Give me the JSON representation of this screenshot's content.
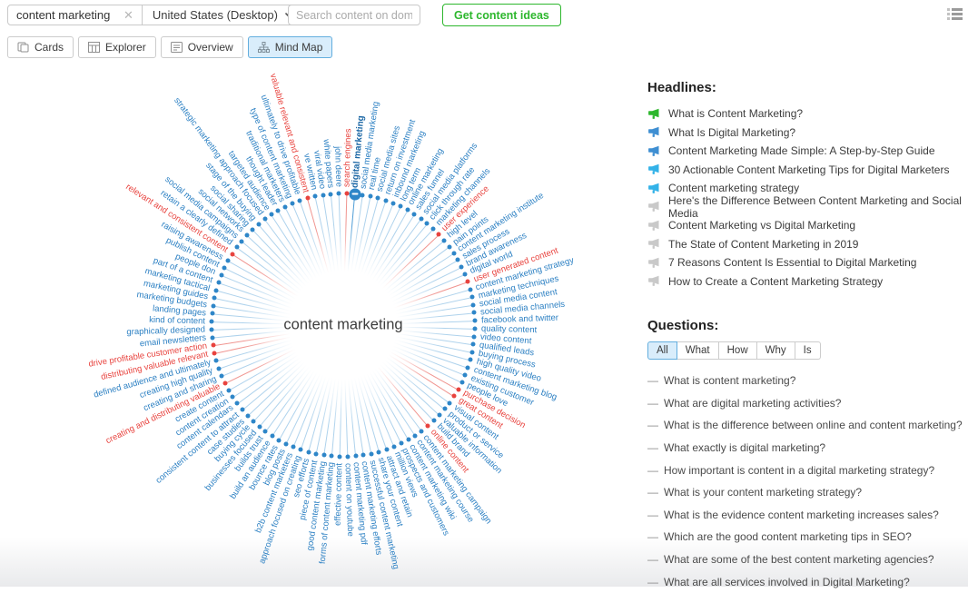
{
  "topbar": {
    "keyword_value": "content marketing",
    "region_selector": "United States (Desktop)",
    "domain_placeholder": "Search content on domain",
    "cta_label": "Get content ideas"
  },
  "tabs": [
    {
      "label": "Cards",
      "icon": "cards-icon",
      "active": false
    },
    {
      "label": "Explorer",
      "icon": "table-icon",
      "active": false
    },
    {
      "label": "Overview",
      "icon": "document-icon",
      "active": false
    },
    {
      "label": "Mind Map",
      "icon": "sitemap-icon",
      "active": true
    }
  ],
  "mindmap": {
    "center_label": "content marketing",
    "colors": {
      "blue": "#2c80c3",
      "blue_dot": "#2e86c8",
      "blue_line": "#aed2ec",
      "red": "#e8433e",
      "red_line": "#f0948f",
      "selected_label": "#1a66a4",
      "selected_dot": "#2e86c8",
      "selected_line": "#4f9dd6"
    },
    "nodes": [
      {
        "label": "digital marketing",
        "color": "selected"
      },
      {
        "label": "social media marketing",
        "color": "blue"
      },
      {
        "label": "real time",
        "color": "blue"
      },
      {
        "label": "social media sites",
        "color": "blue"
      },
      {
        "label": "return on investment",
        "color": "blue"
      },
      {
        "label": "inbound marketing",
        "color": "blue"
      },
      {
        "label": "long term",
        "color": "blue"
      },
      {
        "label": "online marketing",
        "color": "blue"
      },
      {
        "label": "sales funnel",
        "color": "blue"
      },
      {
        "label": "social media platforms",
        "color": "blue"
      },
      {
        "label": "click through rate",
        "color": "blue"
      },
      {
        "label": "marketing channels",
        "color": "blue"
      },
      {
        "label": "user experience",
        "color": "red"
      },
      {
        "label": "high level",
        "color": "blue"
      },
      {
        "label": "pain points",
        "color": "blue"
      },
      {
        "label": "content marketing institute",
        "color": "blue"
      },
      {
        "label": "sales process",
        "color": "blue"
      },
      {
        "label": "brand awareness",
        "color": "blue"
      },
      {
        "label": "digital world",
        "color": "blue"
      },
      {
        "label": "user generated content",
        "color": "red"
      },
      {
        "label": "content marketing strategy",
        "color": "blue"
      },
      {
        "label": "marketing techniques",
        "color": "blue"
      },
      {
        "label": "social media content",
        "color": "blue"
      },
      {
        "label": "social media channels",
        "color": "blue"
      },
      {
        "label": "facebook and twitter",
        "color": "blue"
      },
      {
        "label": "quality content",
        "color": "blue"
      },
      {
        "label": "video content",
        "color": "blue"
      },
      {
        "label": "qualified leads",
        "color": "blue"
      },
      {
        "label": "buying process",
        "color": "blue"
      },
      {
        "label": "high quality video",
        "color": "blue"
      },
      {
        "label": "content marketing blog",
        "color": "blue"
      },
      {
        "label": "existing customer",
        "color": "blue"
      },
      {
        "label": "people love",
        "color": "blue"
      },
      {
        "label": "purchase decision",
        "color": "red"
      },
      {
        "label": "great content",
        "color": "red"
      },
      {
        "label": "visual content",
        "color": "blue"
      },
      {
        "label": "product or service",
        "color": "blue"
      },
      {
        "label": "valuable information",
        "color": "blue"
      },
      {
        "label": "build brand",
        "color": "blue"
      },
      {
        "label": "online content",
        "color": "red"
      },
      {
        "label": "content marketing campaign",
        "color": "blue"
      },
      {
        "label": "content marketing course",
        "color": "blue"
      },
      {
        "label": "content marketing wiki",
        "color": "blue"
      },
      {
        "label": "prospects and customers",
        "color": "blue"
      },
      {
        "label": "million views",
        "color": "blue"
      },
      {
        "label": "attract and retain",
        "color": "blue"
      },
      {
        "label": "share your content",
        "color": "blue"
      },
      {
        "label": "successful content marketing",
        "color": "blue"
      },
      {
        "label": "content marketing efforts",
        "color": "blue"
      },
      {
        "label": "content marketing pdf",
        "color": "blue"
      },
      {
        "label": "content on youtube",
        "color": "blue"
      },
      {
        "label": "effective content",
        "color": "blue"
      },
      {
        "label": "forms of content marketing",
        "color": "blue"
      },
      {
        "label": "good content marketing",
        "color": "blue"
      },
      {
        "label": "piece of content",
        "color": "blue"
      },
      {
        "label": "seo efforts",
        "color": "blue"
      },
      {
        "label": "approach focused on creating",
        "color": "blue"
      },
      {
        "label": "b2b content marketers",
        "color": "blue"
      },
      {
        "label": "blog posts",
        "color": "blue"
      },
      {
        "label": "bounce rates",
        "color": "blue"
      },
      {
        "label": "build an audience",
        "color": "blue"
      },
      {
        "label": "builds trust",
        "color": "blue"
      },
      {
        "label": "businesses focused",
        "color": "blue"
      },
      {
        "label": "buying cycle",
        "color": "blue"
      },
      {
        "label": "case studies",
        "color": "blue"
      },
      {
        "label": "consistent content to attract",
        "color": "blue"
      },
      {
        "label": "content calendars",
        "color": "blue"
      },
      {
        "label": "content creation",
        "color": "blue"
      },
      {
        "label": "create content",
        "color": "blue"
      },
      {
        "label": "creating and distributing valuable",
        "color": "red"
      },
      {
        "label": "creating and sharing",
        "color": "blue"
      },
      {
        "label": "creating high quality",
        "color": "blue"
      },
      {
        "label": "defined audience and ultimately",
        "color": "blue"
      },
      {
        "label": "distributing valuable relevant",
        "color": "red"
      },
      {
        "label": "drive profitable customer action",
        "color": "red"
      },
      {
        "label": "email newsletters",
        "color": "blue"
      },
      {
        "label": "graphically designed",
        "color": "blue"
      },
      {
        "label": "kind of content",
        "color": "blue"
      },
      {
        "label": "landing pages",
        "color": "blue"
      },
      {
        "label": "marketing budgets",
        "color": "blue"
      },
      {
        "label": "marketing guides",
        "color": "blue"
      },
      {
        "label": "marketing tactical",
        "color": "blue"
      },
      {
        "label": "part of a content",
        "color": "blue"
      },
      {
        "label": "people don",
        "color": "blue"
      },
      {
        "label": "publish content",
        "color": "blue"
      },
      {
        "label": "raising awareness",
        "color": "blue"
      },
      {
        "label": "relevant and consistent content",
        "color": "red"
      },
      {
        "label": "retain a clearly defined",
        "color": "blue"
      },
      {
        "label": "social media campaigns",
        "color": "blue"
      },
      {
        "label": "social networks",
        "color": "blue"
      },
      {
        "label": "social sharing",
        "color": "blue"
      },
      {
        "label": "stage of the buying",
        "color": "blue"
      },
      {
        "label": "strategic marketing approach focused",
        "color": "blue"
      },
      {
        "label": "targeted audience",
        "color": "blue"
      },
      {
        "label": "thought leader",
        "color": "blue"
      },
      {
        "label": "traditional marketers",
        "color": "blue"
      },
      {
        "label": "type of content marketing",
        "color": "blue"
      },
      {
        "label": "ultimately to drive profitable",
        "color": "blue"
      },
      {
        "label": "valuable relevant and consistent",
        "color": "red"
      },
      {
        "label": "ve written",
        "color": "blue"
      },
      {
        "label": "viral video",
        "color": "blue"
      },
      {
        "label": "white papers",
        "color": "blue"
      },
      {
        "label": "john deere",
        "color": "blue"
      },
      {
        "label": "search engines",
        "color": "red"
      }
    ]
  },
  "headlines": {
    "title": "Headlines:",
    "items": [
      {
        "text": "What is Content Marketing?",
        "icon_color": "#2db72d"
      },
      {
        "text": "What Is Digital Marketing?",
        "icon_color": "#3f8fd2"
      },
      {
        "text": "Content Marketing Made Simple: A Step-by-Step Guide",
        "icon_color": "#3f8fd2"
      },
      {
        "text": "30 Actionable Content Marketing Tips for Digital Marketers",
        "icon_color": "#33b2e8"
      },
      {
        "text": "Content marketing strategy",
        "icon_color": "#33b2e8"
      },
      {
        "text": "Here's the Difference Between Content Marketing and Social Media",
        "icon_color": "#c9c9c9"
      },
      {
        "text": "Content Marketing vs Digital Marketing",
        "icon_color": "#c9c9c9"
      },
      {
        "text": "The State of Content Marketing in 2019",
        "icon_color": "#c9c9c9"
      },
      {
        "text": "7 Reasons Content Is Essential to Digital Marketing",
        "icon_color": "#c9c9c9"
      },
      {
        "text": "How to Create a Content Marketing Strategy",
        "icon_color": "#c9c9c9"
      }
    ]
  },
  "questions": {
    "title": "Questions:",
    "filters": [
      {
        "label": "All",
        "active": true
      },
      {
        "label": "What",
        "active": false
      },
      {
        "label": "How",
        "active": false
      },
      {
        "label": "Why",
        "active": false
      },
      {
        "label": "Is",
        "active": false
      }
    ],
    "items": [
      "What is content marketing?",
      "What are digital marketing activities?",
      "What is the difference between online and content marketing?",
      "What exactly is digital marketing?",
      "How important is content in a digital marketing strategy?",
      "What is your content marketing strategy?",
      "What is the evidence content marketing increases sales?",
      "Which are the good content marketing tips in SEO?",
      "What are some of the best content marketing agencies?",
      "What are all services involved in Digital Marketing?"
    ]
  }
}
